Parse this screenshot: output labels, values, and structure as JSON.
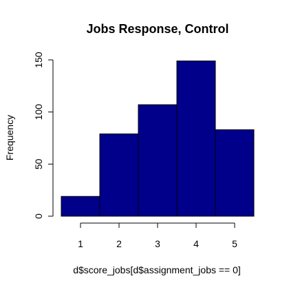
{
  "chart_data": {
    "type": "bar",
    "title": "Jobs Response, Control",
    "xlabel": "d$score_jobs[d$assignment_jobs == 0]",
    "ylabel": "Frequency",
    "categories": [
      "1",
      "2",
      "3",
      "4",
      "5"
    ],
    "x_bins": [
      [
        0.5,
        1.5
      ],
      [
        1.5,
        2.5
      ],
      [
        2.5,
        3.5
      ],
      [
        3.5,
        4.5
      ],
      [
        4.5,
        5.5
      ]
    ],
    "values": [
      19,
      79,
      107,
      149,
      83
    ],
    "x_ticks": [
      1,
      2,
      3,
      4,
      5
    ],
    "y_ticks": [
      0,
      50,
      100,
      150
    ],
    "xlim": [
      0.5,
      5.5
    ],
    "ylim": [
      0,
      150
    ],
    "grid": false,
    "legend": "none",
    "colors": {
      "bar_fill": "#00008B",
      "bar_stroke": "#000000",
      "axis": "#000000",
      "background": "#FFFFFF"
    }
  }
}
